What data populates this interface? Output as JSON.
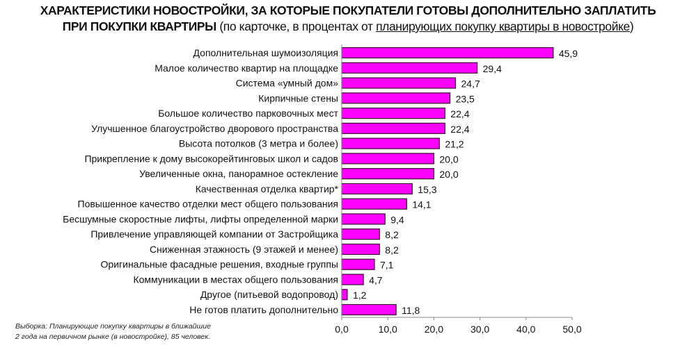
{
  "chart_data": {
    "type": "bar",
    "orientation": "horizontal",
    "title": "ХАРАКТЕРИСТИКИ  НОВОСТРОЙКИ, ЗА КОТОРЫЕ ПОКУПАТЕЛИ ГОТОВЫ ДОПОЛНИТЕЛЬНО ЗАПЛАТИТЬ",
    "title_line2": "ПРИ ПОКУПКИ КВАРТИРЫ",
    "subtitle_prefix": "(по карточке, в процентах от ",
    "subtitle_underlined": "планирующих покупку квартиры в новостройке",
    "subtitle_suffix": ")",
    "categories": [
      "Дополнительная шумоизоляция",
      "Малое количество квартир на площадке",
      "Система «умный дом»",
      "Кирпичные стены",
      "Большое количество парковочных мест",
      "Улучшенное благоустройство дворового пространства",
      "Высота потолков (3 метра и более)",
      "Прикрепление к дому высокорейтинговых школ и садов",
      "Увеличенные окна, панорамное остекление",
      "Качественная отделка квартир*",
      "Повышенное качество отделки мест общего пользования",
      "Бесшумные скоростные лифты, лифты определенной марки",
      "Привлечение управляющей компании от Застройщика",
      "Сниженная этажность (9 этажей и менее)",
      "Оригинальные фасадные решения, входные группы",
      "Коммуникации в местах общего пользования",
      "Другое (питьевой водопровод)",
      "Не готов платить дополнительно"
    ],
    "values": [
      45.9,
      29.4,
      24.7,
      23.5,
      22.4,
      22.4,
      21.2,
      20.0,
      20.0,
      15.3,
      14.1,
      9.4,
      8.2,
      8.2,
      7.1,
      4.7,
      1.2,
      11.8
    ],
    "value_labels": [
      "45,9",
      "29,4",
      "24,7",
      "23,5",
      "22,4",
      "22,4",
      "21,2",
      "20,0",
      "20,0",
      "15,3",
      "14,1",
      "9,4",
      "8,2",
      "8,2",
      "7,1",
      "4,7",
      "1,2",
      "11,8"
    ],
    "xlim": [
      0,
      50
    ],
    "xticks": [
      "0,0",
      "10,0",
      "20,0",
      "30,0",
      "40,0",
      "50,0"
    ],
    "xlabel": "",
    "ylabel": "",
    "grid": false,
    "bar_color": "#ff00ff",
    "bar_edge_color": "#3a1030",
    "footnote_line1": "Выборка: Планирующие покупку квартиры в ближайшие",
    "footnote_line2": "2 года на первичном рынке (в новостройке), 85 человек."
  }
}
